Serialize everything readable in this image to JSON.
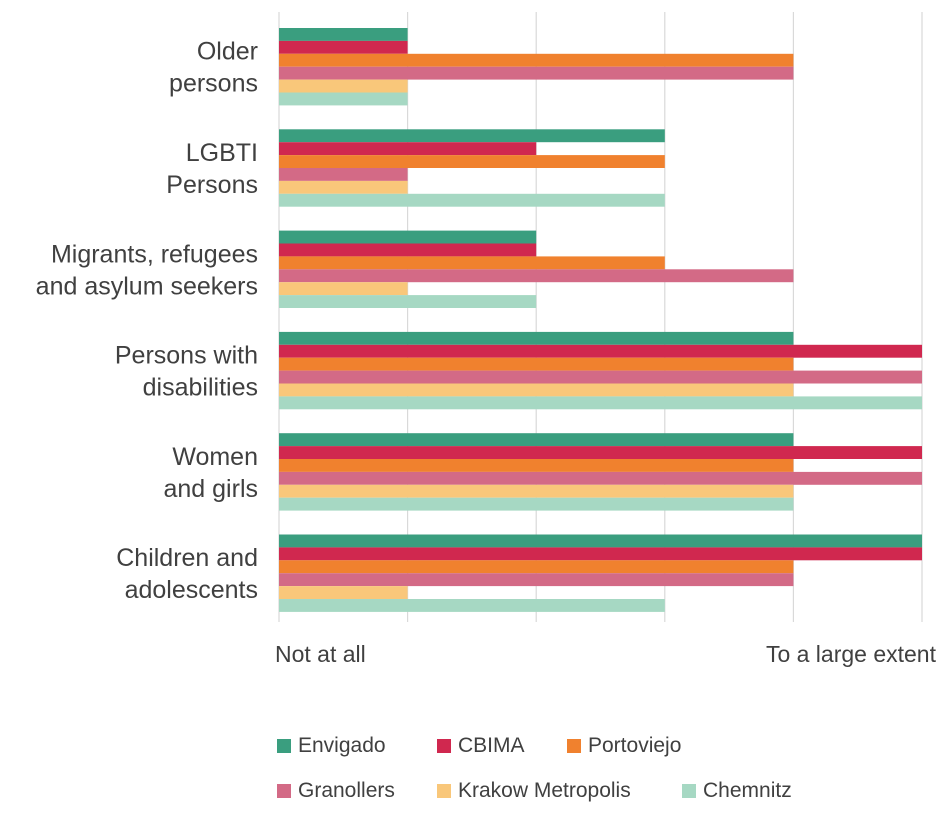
{
  "chart_data": {
    "type": "bar",
    "orientation": "horizontal",
    "categories": [
      [
        "Older",
        "persons"
      ],
      [
        "LGBTI",
        "Persons"
      ],
      [
        "Migrants, refugees",
        "and asylum seekers"
      ],
      [
        "Persons with",
        "disabilities"
      ],
      [
        "Women",
        "and girls"
      ],
      [
        "Children and",
        "adolescents"
      ]
    ],
    "x_tick_labels": {
      "min": "Not at all",
      "max": "To a large extent"
    },
    "xlim": [
      0,
      5
    ],
    "grid": "vertical",
    "legend_position": "bottom",
    "series": [
      {
        "name": "Envigado",
        "color": "#3a9e7f",
        "values": [
          1,
          3,
          2,
          4,
          4,
          5
        ]
      },
      {
        "name": "CBIMA",
        "color": "#d0284f",
        "values": [
          1,
          2,
          2,
          5,
          5,
          5
        ]
      },
      {
        "name": "Portoviejo",
        "color": "#f0812e",
        "values": [
          4,
          3,
          3,
          4,
          4,
          4
        ]
      },
      {
        "name": "Granollers",
        "color": "#d36a86",
        "values": [
          4,
          1,
          4,
          5,
          5,
          4
        ]
      },
      {
        "name": "Krakow Metropolis",
        "color": "#f9c77a",
        "values": [
          1,
          1,
          1,
          4,
          4,
          1
        ]
      },
      {
        "name": "Chemnitz",
        "color": "#a6d8c3",
        "values": [
          1,
          3,
          2,
          5,
          4,
          3
        ]
      }
    ]
  }
}
